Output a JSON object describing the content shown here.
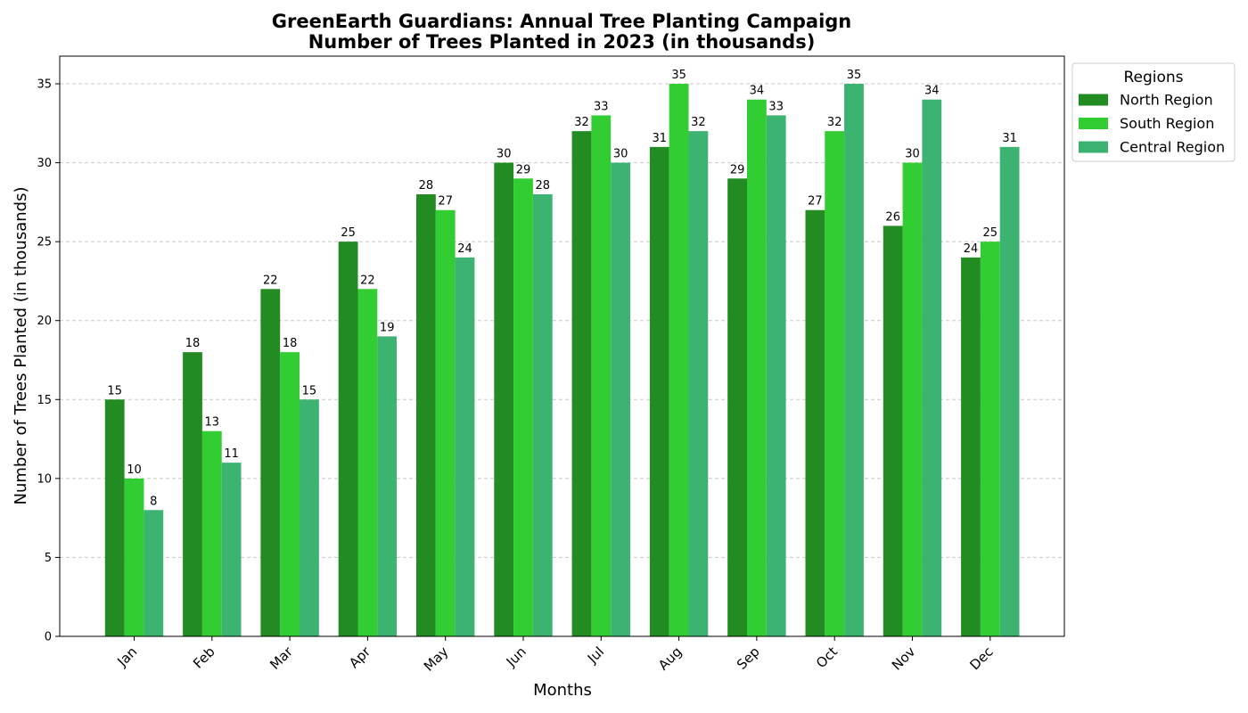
{
  "chart_data": {
    "type": "bar",
    "title": "GreenEarth Guardians: Annual Tree Planting Campaign",
    "subtitle": "Number of Trees Planted in 2023 (in thousands)",
    "xlabel": "Months",
    "ylabel": "Number of Trees Planted (in thousands)",
    "categories": [
      "Jan",
      "Feb",
      "Mar",
      "Apr",
      "May",
      "Jun",
      "Jul",
      "Aug",
      "Sep",
      "Oct",
      "Nov",
      "Dec"
    ],
    "series": [
      {
        "name": "North Region",
        "color": "#228B22",
        "values": [
          15,
          18,
          22,
          25,
          28,
          30,
          32,
          31,
          29,
          27,
          26,
          24
        ]
      },
      {
        "name": "South Region",
        "color": "#32CD32",
        "values": [
          10,
          13,
          18,
          22,
          27,
          29,
          33,
          35,
          34,
          32,
          30,
          25
        ]
      },
      {
        "name": "Central Region",
        "color": "#3CB371",
        "values": [
          8,
          11,
          15,
          19,
          24,
          28,
          30,
          32,
          33,
          35,
          34,
          31
        ]
      }
    ],
    "ylim": [
      0,
      36.75
    ],
    "yticks": [
      0,
      5,
      10,
      15,
      20,
      25,
      30,
      35
    ],
    "grid": "y-dashed",
    "legend": {
      "title": "Regions",
      "placement": "outside-top-right"
    }
  }
}
